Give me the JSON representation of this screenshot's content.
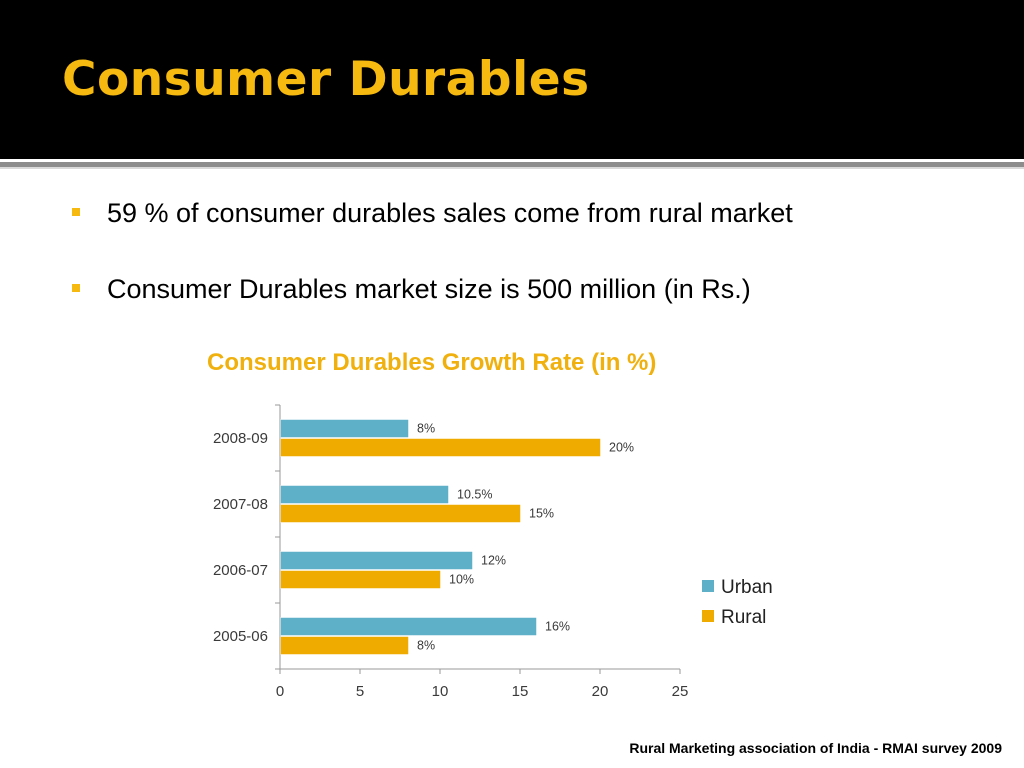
{
  "slide": {
    "title": "Consumer Durables",
    "bullets": [
      "59 % of consumer durables sales come from rural market",
      "Consumer Durables market size is 500 million (in Rs.)"
    ],
    "source": "Rural Marketing association of India - RMAI survey 2009"
  },
  "colors": {
    "title": "#f5b90f",
    "urban": "#5eb0c8",
    "rural": "#f0ab00"
  },
  "chart_data": {
    "type": "bar",
    "orientation": "horizontal",
    "title": "Consumer Durables Growth Rate (in %)",
    "xlabel": "",
    "ylabel": "",
    "categories": [
      "2008-09",
      "2007-08",
      "2006-07",
      "2005-06"
    ],
    "series": [
      {
        "name": "Urban",
        "values": [
          8,
          10.5,
          12,
          16
        ],
        "labels": [
          "8%",
          "10.5%",
          "12%",
          "16%"
        ]
      },
      {
        "name": "Rural",
        "values": [
          20,
          15,
          10,
          8
        ],
        "labels": [
          "20%",
          "15%",
          "10%",
          "8%"
        ]
      }
    ],
    "xlim": [
      0,
      25
    ],
    "xticks": [
      "0",
      "5",
      "10",
      "15",
      "20",
      "25"
    ],
    "grid": false,
    "legend": "right"
  }
}
